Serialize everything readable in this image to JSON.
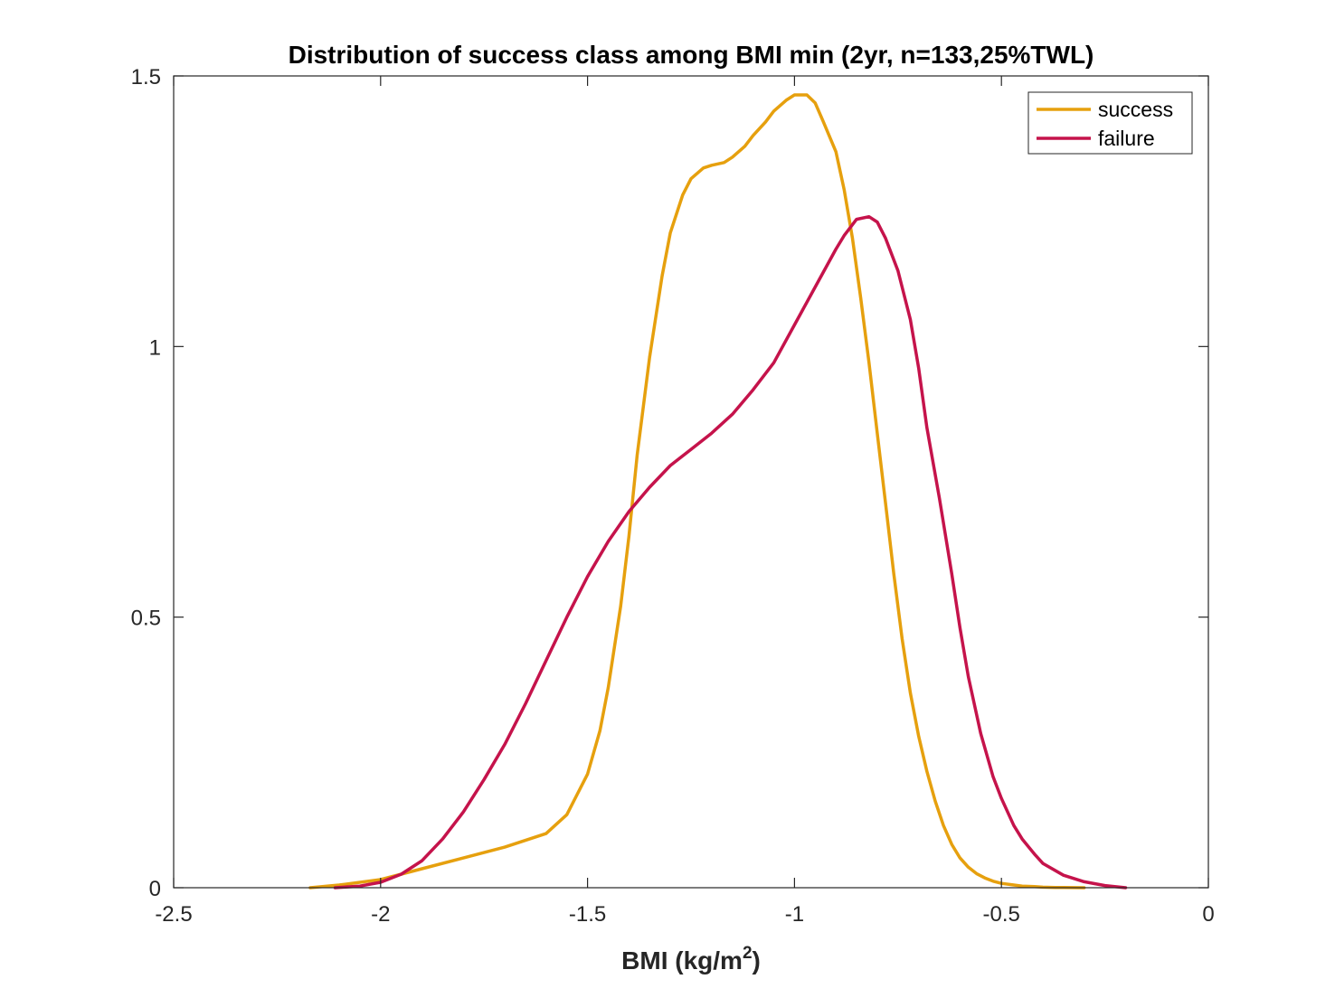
{
  "chart_data": {
    "type": "line",
    "title": "Distribution of success class among BMI min (2yr, n=133,25%TWL)",
    "xlabel": {
      "base": "BMI (kg/m",
      "sup": "2",
      "close": ")"
    },
    "ylabel": "",
    "xlim": [
      -2.5,
      0
    ],
    "ylim": [
      0,
      1.5
    ],
    "xticks": [
      -2.5,
      -2,
      -1.5,
      -1,
      -0.5,
      0
    ],
    "xtick_labels": [
      "-2.5",
      "-2",
      "-1.5",
      "-1",
      "-0.5",
      "0"
    ],
    "yticks": [
      0,
      0.5,
      1,
      1.5
    ],
    "ytick_labels": [
      "0",
      "0.5",
      "1",
      "1.5"
    ],
    "grid": false,
    "legend_position": "top-right",
    "series": [
      {
        "name": "success",
        "color": "#E6A00E",
        "x": [
          -2.17,
          -2.1,
          -2.0,
          -1.9,
          -1.8,
          -1.7,
          -1.6,
          -1.55,
          -1.5,
          -1.47,
          -1.45,
          -1.42,
          -1.4,
          -1.38,
          -1.35,
          -1.32,
          -1.3,
          -1.27,
          -1.25,
          -1.22,
          -1.2,
          -1.17,
          -1.15,
          -1.12,
          -1.1,
          -1.07,
          -1.05,
          -1.02,
          -1.0,
          -0.97,
          -0.95,
          -0.93,
          -0.9,
          -0.88,
          -0.86,
          -0.84,
          -0.82,
          -0.8,
          -0.78,
          -0.76,
          -0.74,
          -0.72,
          -0.7,
          -0.68,
          -0.66,
          -0.64,
          -0.62,
          -0.6,
          -0.58,
          -0.56,
          -0.54,
          -0.52,
          -0.5,
          -0.47,
          -0.45,
          -0.42,
          -0.4,
          -0.37,
          -0.35,
          -0.3
        ],
        "y": [
          0.0,
          0.005,
          0.015,
          0.035,
          0.055,
          0.075,
          0.1,
          0.135,
          0.21,
          0.29,
          0.37,
          0.52,
          0.65,
          0.8,
          0.98,
          1.13,
          1.21,
          1.28,
          1.31,
          1.33,
          1.335,
          1.34,
          1.35,
          1.37,
          1.39,
          1.415,
          1.435,
          1.455,
          1.465,
          1.465,
          1.45,
          1.415,
          1.36,
          1.29,
          1.2,
          1.09,
          0.97,
          0.84,
          0.71,
          0.58,
          0.46,
          0.36,
          0.28,
          0.215,
          0.16,
          0.115,
          0.08,
          0.055,
          0.038,
          0.026,
          0.018,
          0.012,
          0.008,
          0.005,
          0.003,
          0.002,
          0.001,
          0.0005,
          0.0003,
          0.0
        ]
      },
      {
        "name": "failure",
        "color": "#C5134B",
        "x": [
          -2.11,
          -2.05,
          -2.0,
          -1.95,
          -1.9,
          -1.85,
          -1.8,
          -1.75,
          -1.7,
          -1.65,
          -1.6,
          -1.55,
          -1.5,
          -1.45,
          -1.4,
          -1.35,
          -1.3,
          -1.25,
          -1.2,
          -1.15,
          -1.1,
          -1.05,
          -1.0,
          -0.95,
          -0.9,
          -0.88,
          -0.85,
          -0.82,
          -0.8,
          -0.78,
          -0.75,
          -0.72,
          -0.7,
          -0.68,
          -0.65,
          -0.62,
          -0.6,
          -0.58,
          -0.55,
          -0.52,
          -0.5,
          -0.47,
          -0.45,
          -0.42,
          -0.4,
          -0.35,
          -0.3,
          -0.25,
          -0.2
        ],
        "y": [
          0.0,
          0.003,
          0.01,
          0.025,
          0.05,
          0.09,
          0.14,
          0.2,
          0.265,
          0.34,
          0.42,
          0.5,
          0.575,
          0.64,
          0.695,
          0.74,
          0.78,
          0.81,
          0.84,
          0.875,
          0.92,
          0.97,
          1.04,
          1.11,
          1.18,
          1.205,
          1.235,
          1.24,
          1.23,
          1.2,
          1.14,
          1.05,
          0.96,
          0.85,
          0.72,
          0.58,
          0.48,
          0.39,
          0.285,
          0.205,
          0.165,
          0.115,
          0.09,
          0.062,
          0.045,
          0.023,
          0.011,
          0.004,
          0.0
        ]
      }
    ]
  }
}
